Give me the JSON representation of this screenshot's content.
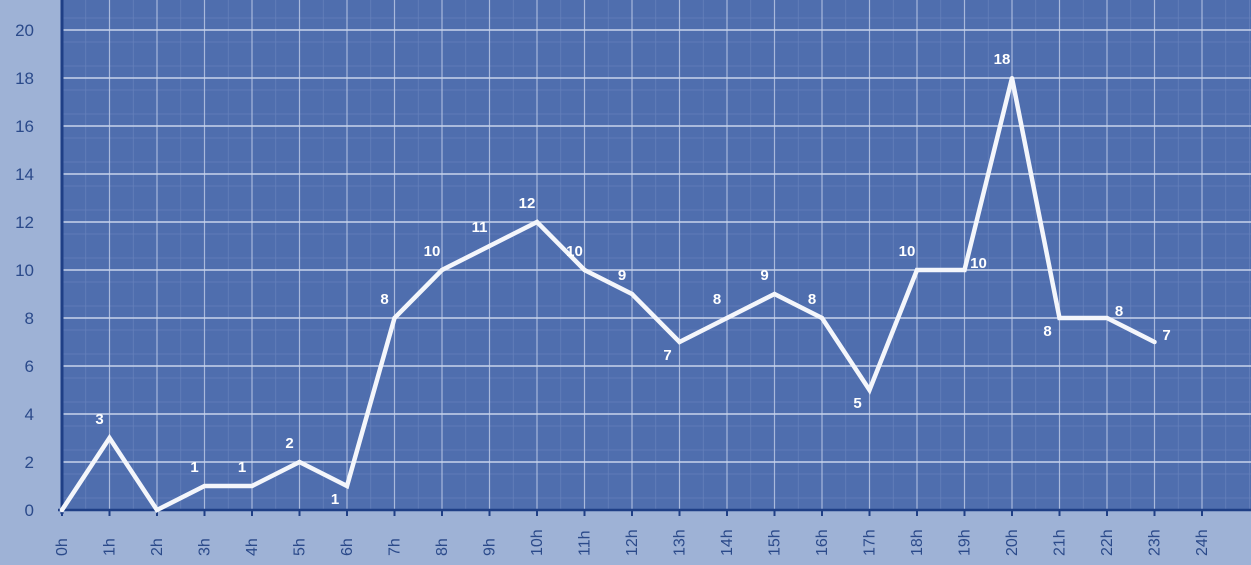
{
  "chart_data": {
    "type": "line",
    "title": "",
    "xlabel": "",
    "ylabel": "",
    "x": [
      "0h",
      "1h",
      "2h",
      "3h",
      "4h",
      "5h",
      "6h",
      "7h",
      "8h",
      "9h",
      "10h",
      "11h",
      "12h",
      "13h",
      "14h",
      "15h",
      "16h",
      "17h",
      "18h",
      "19h",
      "20h",
      "21h",
      "22h",
      "23h",
      "24h"
    ],
    "series": [
      {
        "values": [
          0,
          3,
          0,
          1,
          1,
          2,
          1,
          8,
          10,
          11,
          12,
          10,
          9,
          7,
          8,
          9,
          8,
          5,
          10,
          10,
          18,
          8,
          8,
          7,
          null
        ]
      }
    ],
    "data_labels": [
      "",
      "3",
      "",
      "1",
      "1",
      "2",
      "1",
      "8",
      "10",
      "11",
      "12",
      "10",
      "9",
      "7",
      "8",
      "9",
      "8",
      "5",
      "10",
      "10",
      "18",
      "8",
      "8",
      "7",
      ""
    ],
    "yticks": [
      "0",
      "2",
      "4",
      "6",
      "8",
      "10",
      "12",
      "14",
      "16",
      "18",
      "20"
    ],
    "ylim": [
      0,
      21
    ],
    "grid": true,
    "legend": "none",
    "colors": {
      "background": "#9eb2d6",
      "plot": "#4f6eae",
      "grid_major": "#c8d4ec",
      "grid_minor": "#6580bb",
      "axis": "#1f3f86",
      "line": "#f4f6fb",
      "label": "#ffffff",
      "tick_text": "#2b4a8a"
    }
  }
}
